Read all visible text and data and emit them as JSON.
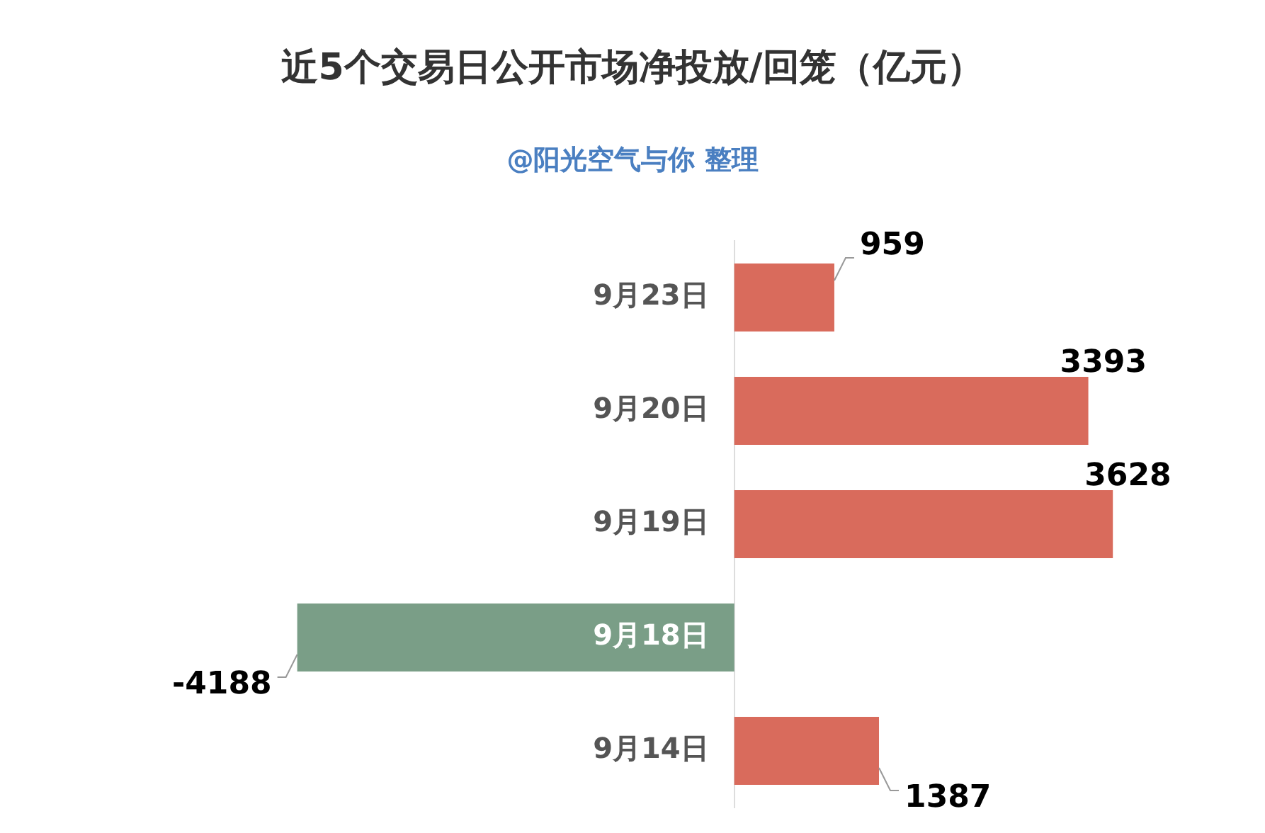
{
  "chart_data": {
    "type": "bar",
    "orientation": "horizontal",
    "title": "近5个交易日公开市场净投放/回笼（亿元）",
    "subtitle": "@阳光空气与你 整理",
    "categories": [
      "9月23日",
      "9月20日",
      "9月19日",
      "9月18日",
      "9月14日"
    ],
    "values": [
      959,
      3393,
      3628,
      -4188,
      1387
    ],
    "colors": [
      "#d96b5c",
      "#d96b5c",
      "#d96b5c",
      "#7a9e87",
      "#d96b5c"
    ],
    "data_labels": true,
    "legend": false
  }
}
